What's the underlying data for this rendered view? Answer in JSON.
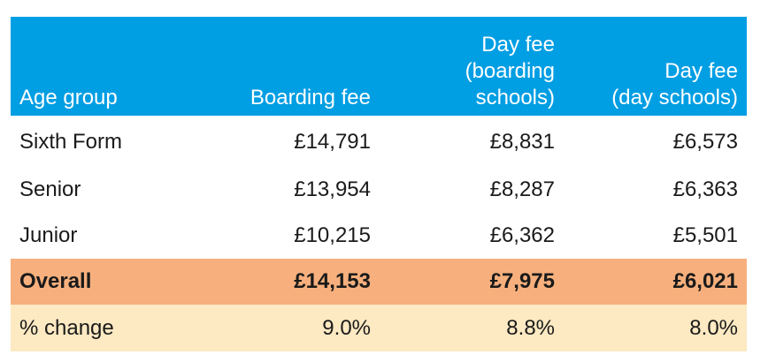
{
  "table": {
    "headers": [
      {
        "lines": [
          "Age group"
        ]
      },
      {
        "lines": [
          "Boarding fee"
        ]
      },
      {
        "lines": [
          "Day fee",
          "(boarding",
          "schools)"
        ]
      },
      {
        "lines": [
          "Day fee",
          "(day schools)"
        ]
      }
    ],
    "rows": [
      {
        "label": "Sixth Form",
        "values": [
          "£14,791",
          "£8,831",
          "£6,573"
        ]
      },
      {
        "label": "Senior",
        "values": [
          "£13,954",
          "£8,287",
          "£6,363"
        ]
      },
      {
        "label": "Junior",
        "values": [
          "£10,215",
          "£6,362",
          "£5,501"
        ]
      }
    ],
    "total": {
      "label": "Overall",
      "values": [
        "£14,153",
        "£7,975",
        "£6,021"
      ]
    },
    "change": {
      "label": "% change",
      "values": [
        "9.0%",
        "8.8%",
        "8.0%"
      ]
    }
  },
  "colors": {
    "header_bg": "#009ee3",
    "total_bg": "#f7b07d",
    "change_bg": "#fde9c2"
  }
}
